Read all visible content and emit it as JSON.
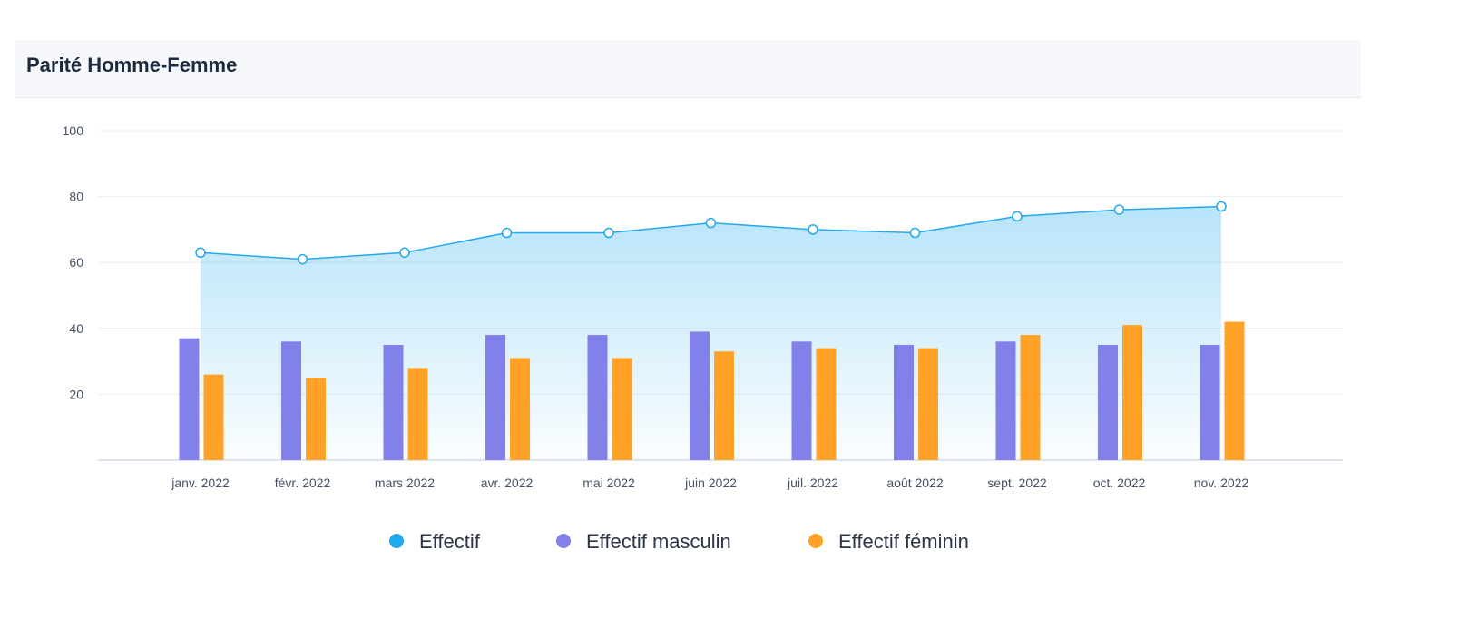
{
  "card": {
    "title": "Parité Homme-Femme"
  },
  "colors": {
    "effectif": "#21a9ee",
    "masculin": "#8280e9",
    "feminin": "#ffa227",
    "grid": "#e9edf3"
  },
  "chart_data": {
    "type": "bar",
    "title": "Parité Homme-Femme",
    "categories": [
      "janv. 2022",
      "févr. 2022",
      "mars 2022",
      "avr. 2022",
      "mai 2022",
      "juin 2022",
      "juil. 2022",
      "août 2022",
      "sept. 2022",
      "oct. 2022",
      "nov. 2022"
    ],
    "series": [
      {
        "name": "Effectif",
        "type": "area",
        "color": "#21a9ee",
        "values": [
          63,
          61,
          63,
          69,
          69,
          72,
          70,
          69,
          74,
          76,
          77
        ]
      },
      {
        "name": "Effectif masculin",
        "type": "bar",
        "color": "#8280e9",
        "values": [
          37,
          36,
          35,
          38,
          38,
          39,
          36,
          35,
          36,
          35,
          35
        ]
      },
      {
        "name": "Effectif féminin",
        "type": "bar",
        "color": "#ffa227",
        "values": [
          26,
          25,
          28,
          31,
          31,
          33,
          34,
          34,
          38,
          41,
          42
        ]
      }
    ],
    "ylim": [
      0,
      100
    ],
    "yticks": [
      20,
      40,
      60,
      80,
      100
    ],
    "xlabel": "",
    "ylabel": "",
    "grid": true,
    "legend": "bottom-center"
  }
}
